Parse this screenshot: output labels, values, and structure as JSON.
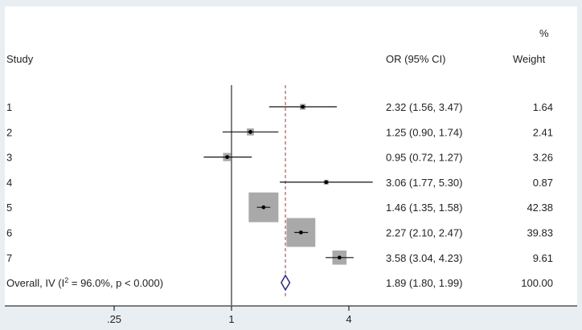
{
  "header": {
    "study_label": "Study",
    "or_label": "OR (95% CI)",
    "weight_pct": "%",
    "weight_label": "Weight"
  },
  "chart_data": {
    "type": "forest",
    "x_scale": "log",
    "null_value": 1,
    "overall_value": 1.89,
    "xticks": [
      {
        "value": 0.25,
        "label": ".25"
      },
      {
        "value": 1,
        "label": "1"
      },
      {
        "value": 4,
        "label": "4"
      }
    ],
    "studies": [
      {
        "label": "1",
        "or": 2.32,
        "lo": 1.56,
        "hi": 3.47,
        "ci_text": "2.32 (1.56, 3.47)",
        "weight": 1.64,
        "weight_text": "1.64"
      },
      {
        "label": "2",
        "or": 1.25,
        "lo": 0.9,
        "hi": 1.74,
        "ci_text": "1.25 (0.90, 1.74)",
        "weight": 2.41,
        "weight_text": "2.41"
      },
      {
        "label": "3",
        "or": 0.95,
        "lo": 0.72,
        "hi": 1.27,
        "ci_text": "0.95 (0.72, 1.27)",
        "weight": 3.26,
        "weight_text": "3.26"
      },
      {
        "label": "4",
        "or": 3.06,
        "lo": 1.77,
        "hi": 5.3,
        "ci_text": "3.06 (1.77, 5.30)",
        "weight": 0.87,
        "weight_text": "0.87"
      },
      {
        "label": "5",
        "or": 1.46,
        "lo": 1.35,
        "hi": 1.58,
        "ci_text": "1.46 (1.35, 1.58)",
        "weight": 42.38,
        "weight_text": "42.38"
      },
      {
        "label": "6",
        "or": 2.27,
        "lo": 2.1,
        "hi": 2.47,
        "ci_text": "2.27 (2.10, 2.47)",
        "weight": 39.83,
        "weight_text": "39.83"
      },
      {
        "label": "7",
        "or": 3.58,
        "lo": 3.04,
        "hi": 4.23,
        "ci_text": "3.58 (3.04, 4.23)",
        "weight": 9.61,
        "weight_text": "9.61"
      }
    ],
    "overall": {
      "label_prefix": "Overall, IV (I",
      "label_sup": "2",
      "label_suffix": " = 96.0%, p < 0.000)",
      "or": 1.89,
      "lo": 1.8,
      "hi": 1.99,
      "ci_text": "1.89 (1.80, 1.99)",
      "weight_text": "100.00"
    },
    "colors": {
      "weight_box": "#a9a9a9",
      "overall_diamond": "#2b2b7a",
      "overall_line": "#b03030",
      "ci_line": "#111111"
    }
  }
}
